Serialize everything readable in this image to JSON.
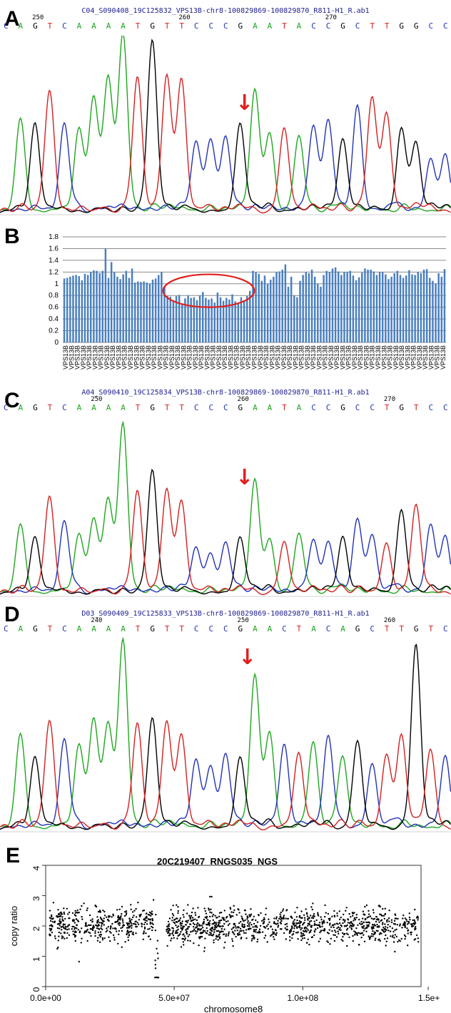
{
  "panel_labels": {
    "a": "A",
    "b": "B",
    "c": "C",
    "d": "D",
    "e": "E"
  },
  "chrom_a": {
    "file": "C04_S090408_19C125832_VPS13B-chr8-100829869-100829870_R811-H1_R.ab1",
    "bases": [
      "C",
      "A",
      "G",
      "T",
      "C",
      "A",
      "A",
      "A",
      "A",
      "T",
      "G",
      "T",
      "T",
      "C",
      "C",
      "C",
      "G",
      "A",
      "A",
      "T",
      "A",
      "C",
      "C",
      "G",
      "C",
      "T",
      "T",
      "G",
      "G",
      "C",
      "C"
    ],
    "positions": [
      {
        "label": "250",
        "base_index": 2
      },
      {
        "label": "260",
        "base_index": 12
      },
      {
        "label": "270",
        "base_index": 22
      }
    ],
    "arrow": "↓"
  },
  "chrom_c": {
    "file": "A04_S090410_19C125834_VPS13B-chr8-100829869-100829870_R811-H1_R.ab1",
    "bases": [
      "C",
      "A",
      "G",
      "T",
      "C",
      "A",
      "A",
      "A",
      "A",
      "T",
      "G",
      "T",
      "T",
      "C",
      "C",
      "C",
      "G",
      "A",
      "A",
      "T",
      "A",
      "C",
      "C",
      "G",
      "C",
      "C",
      "T",
      "G",
      "T",
      "C",
      "C"
    ],
    "positions": [
      {
        "label": "250",
        "base_index": 6
      },
      {
        "label": "260",
        "base_index": 16
      },
      {
        "label": "270",
        "base_index": 26
      }
    ],
    "arrow": "↓"
  },
  "chrom_d": {
    "file": "D03_S090409_19C125833_VPS13B-chr8-100829869-100829870_R811-H1_R.ab1",
    "bases": [
      "C",
      "A",
      "G",
      "T",
      "C",
      "A",
      "A",
      "A",
      "A",
      "T",
      "G",
      "T",
      "T",
      "C",
      "C",
      "C",
      "G",
      "A",
      "A",
      "C",
      "T",
      "A",
      "C",
      "A",
      "G",
      "C",
      "T",
      "T",
      "G",
      "T",
      "C"
    ],
    "positions": [
      {
        "label": "240",
        "base_index": 6
      },
      {
        "label": "250",
        "base_index": 16
      },
      {
        "label": "260",
        "base_index": 26
      }
    ],
    "arrow": "↓"
  },
  "base_colors": {
    "A": "#1fa61f",
    "C": "#2233b8",
    "G": "#000000",
    "T": "#d42020"
  },
  "chart_data": [
    {
      "type": "bar",
      "panel": "B",
      "title": "",
      "xlabel": "",
      "ylabel": "",
      "ylim": [
        0,
        1.8
      ],
      "yticks": [
        "0",
        "0.2",
        "0.4",
        "0.6",
        "0.8",
        "1",
        "1.2",
        "1.4",
        "1.6",
        "1.8"
      ],
      "grid": true,
      "category_label": "VPS13B",
      "category_count": 130,
      "values": [
        1.09,
        1.1,
        1.12,
        1.14,
        1.15,
        1.13,
        1.06,
        1.17,
        1.15,
        1.2,
        1.23,
        1.22,
        1.18,
        1.22,
        1.6,
        1.1,
        1.37,
        1.2,
        1.12,
        1.08,
        1.16,
        1.22,
        1.1,
        1.26,
        1.02,
        1.04,
        1.03,
        1.04,
        1.02,
        1.0,
        1.07,
        1.09,
        1.15,
        1.2,
        0.95,
        0.79,
        0.78,
        0.72,
        0.79,
        0.81,
        0.65,
        0.75,
        0.8,
        0.76,
        0.77,
        0.72,
        0.8,
        0.86,
        0.76,
        0.73,
        0.75,
        0.68,
        0.85,
        0.77,
        0.71,
        0.76,
        0.73,
        0.82,
        0.7,
        0.68,
        0.77,
        0.72,
        0.79,
        0.88,
        1.22,
        1.2,
        1.17,
        1.05,
        1.14,
        1.0,
        1.07,
        1.12,
        1.2,
        1.21,
        1.24,
        1.33,
        0.95,
        1.12,
        0.8,
        0.77,
        1.05,
        1.15,
        1.2,
        1.18,
        1.24,
        1.12,
        1.0,
        0.95,
        1.15,
        1.22,
        1.2,
        1.26,
        1.28,
        1.21,
        1.15,
        1.2,
        1.2,
        1.22,
        1.14,
        1.06,
        1.11,
        1.19,
        1.26,
        1.24,
        1.24,
        1.21,
        1.15,
        1.2,
        1.2,
        1.16,
        1.08,
        1.12,
        1.18,
        1.22,
        1.15,
        1.1,
        1.14,
        1.23,
        1.16,
        1.15,
        1.2,
        1.18,
        1.24,
        1.25,
        1.1,
        1.05,
        1.0,
        1.18,
        1.12,
        1.25
      ],
      "annotation": "red ellipse around reduced copy region"
    },
    {
      "type": "scatter",
      "panel": "E",
      "title": "20C219407_RNGS035_NGS",
      "xlabel": "chromosome8",
      "ylabel": "copy ratio",
      "xlim": [
        0,
        146000000
      ],
      "ylim": [
        0,
        4
      ],
      "xticks": [
        "0.0e+00",
        "5.0e+07",
        "1.0e+08",
        "1.5e+"
      ],
      "yticks": [
        "0",
        "1",
        "2",
        "3",
        "4"
      ],
      "segments": [
        {
          "x_range": [
            1500000,
            42000000
          ],
          "mean": 2.05,
          "sd": 0.28
        },
        {
          "x_range": [
            42500000,
            44000000
          ],
          "mean": 1.2,
          "sd": 0.65
        },
        {
          "x_range": [
            47000000,
            145000000
          ],
          "mean": 2.0,
          "sd": 0.28
        }
      ],
      "point_count": 1500
    }
  ],
  "traces": {
    "a": {
      "peaks": [
        [
          1,
          0.55
        ],
        [
          2,
          0.55
        ],
        [
          3,
          0.75
        ],
        [
          4,
          0.5
        ],
        [
          5,
          0.5
        ],
        [
          6,
          0.7
        ],
        [
          7,
          0.8
        ],
        [
          8,
          1.1
        ],
        [
          9,
          0.8
        ],
        [
          10,
          1.05
        ],
        [
          11,
          0.8
        ],
        [
          12,
          0.8
        ],
        [
          13,
          0.4
        ],
        [
          14,
          0.4
        ],
        [
          15,
          0.45
        ],
        [
          16,
          0.5
        ],
        [
          17,
          0.75
        ],
        [
          18,
          0.45
        ],
        [
          19,
          0.5
        ],
        [
          20,
          0.45
        ],
        [
          21,
          0.5
        ],
        [
          22,
          0.55
        ],
        [
          23,
          0.45
        ],
        [
          24,
          0.65
        ],
        [
          25,
          0.7
        ],
        [
          26,
          0.6
        ],
        [
          27,
          0.5
        ],
        [
          28,
          0.4
        ],
        [
          29,
          0.3
        ],
        [
          30,
          0.35
        ]
      ]
    },
    "c": {
      "peaks": [
        [
          1,
          0.4
        ],
        [
          2,
          0.35
        ],
        [
          3,
          0.6
        ],
        [
          4,
          0.4
        ],
        [
          5,
          0.35
        ],
        [
          6,
          0.45
        ],
        [
          7,
          0.55
        ],
        [
          8,
          1.05
        ],
        [
          9,
          0.6
        ],
        [
          10,
          0.75
        ],
        [
          11,
          0.6
        ],
        [
          12,
          0.55
        ],
        [
          13,
          0.25
        ],
        [
          14,
          0.2
        ],
        [
          15,
          0.3
        ],
        [
          16,
          0.3
        ],
        [
          17,
          0.7
        ],
        [
          18,
          0.3
        ],
        [
          19,
          0.3
        ],
        [
          20,
          0.35
        ],
        [
          21,
          0.3
        ],
        [
          22,
          0.3
        ],
        [
          23,
          0.35
        ],
        [
          24,
          0.45
        ],
        [
          25,
          0.35
        ],
        [
          26,
          0.3
        ],
        [
          27,
          0.5
        ],
        [
          28,
          0.5
        ],
        [
          29,
          0.4
        ],
        [
          30,
          0.35
        ]
      ]
    },
    "d": {
      "peaks": [
        [
          1,
          0.5
        ],
        [
          2,
          0.4
        ],
        [
          3,
          0.6
        ],
        [
          4,
          0.45
        ],
        [
          5,
          0.45
        ],
        [
          6,
          0.6
        ],
        [
          7,
          0.55
        ],
        [
          8,
          1.05
        ],
        [
          9,
          0.55
        ],
        [
          10,
          0.6
        ],
        [
          11,
          0.55
        ],
        [
          12,
          0.5
        ],
        [
          13,
          0.35
        ],
        [
          14,
          0.3
        ],
        [
          15,
          0.4
        ],
        [
          16,
          0.35
        ],
        [
          17,
          0.85
        ],
        [
          18,
          0.5
        ],
        [
          19,
          0.45
        ],
        [
          20,
          0.4
        ],
        [
          21,
          0.45
        ],
        [
          22,
          0.5
        ],
        [
          23,
          0.35
        ],
        [
          24,
          0.45
        ],
        [
          25,
          0.35
        ],
        [
          26,
          0.4
        ],
        [
          27,
          0.5
        ],
        [
          28,
          1.0
        ],
        [
          29,
          0.4
        ],
        [
          30,
          0.4
        ]
      ]
    }
  }
}
